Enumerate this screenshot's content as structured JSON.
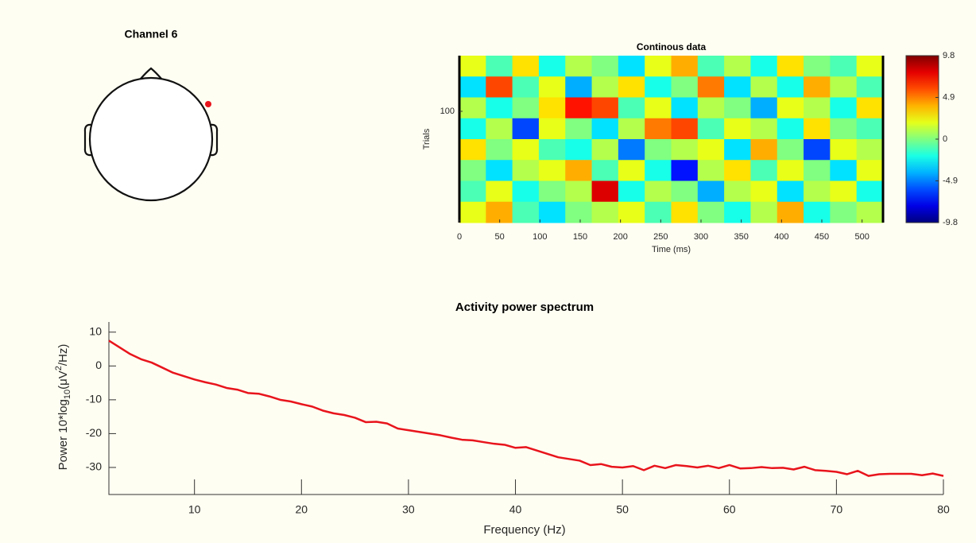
{
  "chart_data": [
    {
      "type": "topo",
      "title": "Channel 6",
      "marker_color": "#e8141c"
    },
    {
      "type": "heatmap",
      "title": "Continous data",
      "xlabel": "Time (ms)",
      "ylabel": "Trials",
      "xlim": [
        0,
        526
      ],
      "xticks": [
        0,
        50,
        100,
        150,
        200,
        250,
        300,
        350,
        400,
        450,
        500
      ],
      "ylim": [
        0,
        150
      ],
      "yticks": [
        100
      ],
      "z": [
        [
          2,
          -1,
          3,
          -2,
          1,
          0,
          -3,
          2,
          4,
          -1,
          1,
          -2,
          3,
          0,
          -1,
          2
        ],
        [
          -3,
          6,
          -1,
          2,
          -4,
          1,
          3,
          -2,
          0,
          5,
          -3,
          1,
          -2,
          4,
          1,
          -1
        ],
        [
          1,
          -2,
          0,
          3,
          7,
          6,
          -1,
          2,
          -3,
          1,
          0,
          -4,
          2,
          1,
          -2,
          3
        ],
        [
          -2,
          1,
          -6,
          2,
          0,
          -3,
          1,
          5,
          6,
          -1,
          2,
          1,
          -2,
          3,
          0,
          -1
        ],
        [
          3,
          0,
          2,
          -1,
          -2,
          1,
          -5,
          0,
          1,
          2,
          -3,
          4,
          0,
          -6,
          2,
          1
        ],
        [
          0,
          -3,
          1,
          2,
          4,
          -1,
          2,
          -2,
          -7,
          1,
          3,
          -1,
          2,
          0,
          -3,
          2
        ],
        [
          -1,
          2,
          -2,
          0,
          1,
          8,
          -2,
          1,
          0,
          -4,
          1,
          2,
          -3,
          1,
          2,
          -2
        ],
        [
          2,
          4,
          -1,
          -3,
          0,
          1,
          2,
          -1,
          3,
          0,
          -2,
          1,
          4,
          -2,
          0,
          1
        ]
      ],
      "clim": [
        -9.8,
        9.8
      ],
      "cticks": [
        9.8,
        4.9,
        0,
        -4.9,
        -9.8
      ],
      "colormap": "jet"
    },
    {
      "type": "line",
      "title": "Activity power spectrum",
      "xlabel": "Frequency (Hz)",
      "ylabel_parts": [
        "Power 10*log",
        "10",
        "(μV",
        "2",
        "/Hz)"
      ],
      "xlim": [
        2,
        80
      ],
      "xticks": [
        10,
        20,
        30,
        40,
        50,
        60,
        70,
        80
      ],
      "ylim": [
        -38,
        13
      ],
      "yticks": [
        -30,
        -20,
        -10,
        0,
        10
      ],
      "series": [
        {
          "color": "#e8141c",
          "x": [
            2,
            3,
            4,
            5,
            6,
            7,
            8,
            9,
            10,
            11,
            12,
            13,
            14,
            15,
            16,
            17,
            18,
            19,
            20,
            21,
            22,
            23,
            24,
            25,
            26,
            27,
            28,
            29,
            30,
            31,
            32,
            33,
            34,
            35,
            36,
            37,
            38,
            39,
            40,
            41,
            42,
            43,
            44,
            45,
            46,
            47,
            48,
            49,
            50,
            51,
            52,
            53,
            54,
            55,
            56,
            57,
            58,
            59,
            60,
            61,
            62,
            63,
            64,
            65,
            66,
            67,
            68,
            69,
            70,
            71,
            72,
            73,
            74,
            75,
            76,
            77,
            78,
            79,
            80
          ],
          "values": [
            7.5,
            5.5,
            3.5,
            2,
            1,
            -0.5,
            -2,
            -3,
            -4,
            -4.8,
            -5.5,
            -6.5,
            -7,
            -8,
            -8.2,
            -9,
            -10,
            -10.5,
            -11.3,
            -12,
            -13.2,
            -14,
            -14.5,
            -15.3,
            -16.6,
            -16.5,
            -17,
            -18.5,
            -19,
            -19.5,
            -20,
            -20.5,
            -21.2,
            -21.8,
            -22,
            -22.5,
            -23,
            -23.3,
            -24.2,
            -24,
            -25,
            -26,
            -27,
            -27.5,
            -28,
            -29.3,
            -29,
            -29.8,
            -30,
            -29.6,
            -30.8,
            -29.5,
            -30.2,
            -29.3,
            -29.6,
            -30,
            -29.5,
            -30.2,
            -29.3,
            -30.3,
            -30.2,
            -29.9,
            -30.2,
            -30.1,
            -30.6,
            -29.8,
            -30.8,
            -31,
            -31.3,
            -32,
            -31,
            -32.5,
            -32,
            -31.9,
            -31.9,
            -31.9,
            -32.3,
            -31.8,
            -32.5
          ]
        }
      ]
    }
  ]
}
